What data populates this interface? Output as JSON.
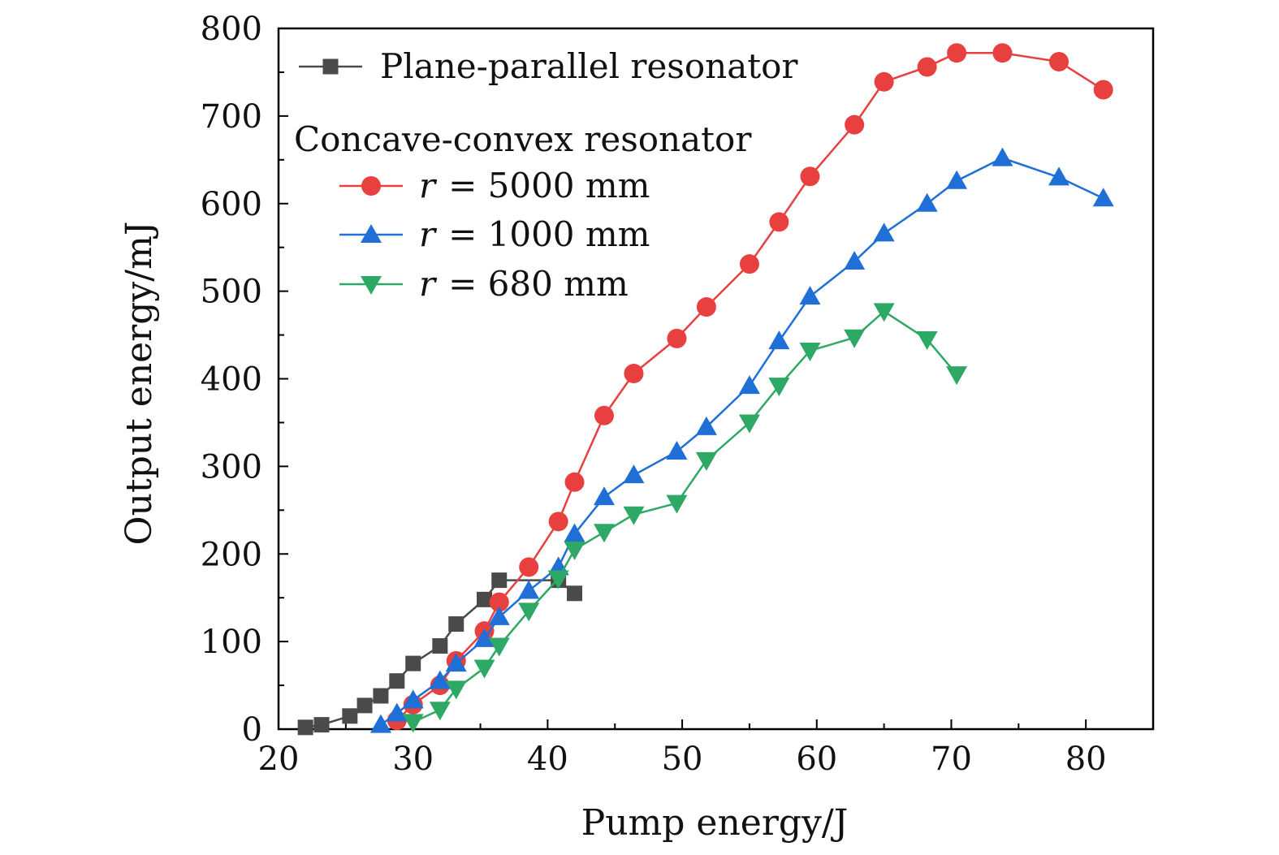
{
  "chart_data": {
    "type": "line",
    "title": "",
    "xlabel": "Pump energy/J",
    "ylabel": "Output energy/mJ",
    "xlim": [
      20,
      85
    ],
    "ylim": [
      0,
      800
    ],
    "x_ticks": [
      20,
      30,
      40,
      50,
      60,
      70,
      80
    ],
    "y_ticks": [
      0,
      100,
      200,
      300,
      400,
      500,
      600,
      700,
      800
    ],
    "grid": false,
    "legend_position": "top-left",
    "legend_group_heading": "Concave-convex resonator",
    "series": [
      {
        "name": "Plane-parallel resonator",
        "legend_main": "Plane-parallel resonator",
        "color": "#4a4a4a",
        "marker": "square",
        "x": [
          22.0,
          23.2,
          25.3,
          26.4,
          27.6,
          28.8,
          30.0,
          32.0,
          33.2,
          35.3,
          36.4,
          40.8,
          42.0
        ],
        "y": [
          2,
          5,
          15,
          27,
          38,
          55,
          75,
          95,
          120,
          148,
          170,
          170,
          155
        ]
      },
      {
        "name": "r = 5000 mm",
        "legend_var": "r",
        "legend_rest": "= 5000 mm",
        "color": "#e8403f",
        "marker": "circle",
        "x": [
          28.8,
          30.0,
          32.0,
          33.2,
          35.3,
          36.4,
          38.6,
          40.8,
          42.0,
          44.2,
          46.4,
          49.6,
          51.8,
          55.0,
          57.2,
          59.5,
          62.8,
          65.0,
          68.2,
          70.4,
          73.8,
          78.0,
          81.3
        ],
        "y": [
          10,
          28,
          50,
          78,
          112,
          145,
          185,
          237,
          282,
          358,
          406,
          446,
          482,
          531,
          579,
          631,
          690,
          739,
          756,
          772,
          772,
          762,
          730
        ]
      },
      {
        "name": "r = 1000 mm",
        "legend_var": "r",
        "legend_rest": "= 1000 mm",
        "color": "#1f6fd6",
        "marker": "triangle-up",
        "x": [
          27.6,
          28.8,
          30.0,
          32.0,
          33.2,
          35.3,
          36.4,
          38.6,
          40.8,
          42.0,
          44.2,
          46.4,
          49.6,
          51.8,
          55.0,
          57.2,
          59.5,
          62.8,
          65.0,
          68.2,
          70.4,
          73.8,
          78.0,
          81.3
        ],
        "y": [
          5,
          18,
          33,
          55,
          75,
          103,
          128,
          158,
          185,
          223,
          265,
          290,
          317,
          345,
          392,
          443,
          494,
          534,
          566,
          600,
          626,
          652,
          630,
          606
        ]
      },
      {
        "name": "r = 680 mm",
        "legend_var": "r",
        "legend_rest": "= 680 mm",
        "color": "#2ea865",
        "marker": "triangle-down",
        "x": [
          30.0,
          32.0,
          33.2,
          35.3,
          36.4,
          38.6,
          40.8,
          42.0,
          44.2,
          46.4,
          49.6,
          51.8,
          55.0,
          57.2,
          59.5,
          62.8,
          65.0,
          68.2,
          70.4
        ],
        "y": [
          8,
          22,
          46,
          70,
          95,
          135,
          172,
          205,
          225,
          245,
          258,
          307,
          350,
          392,
          432,
          447,
          477,
          445,
          405
        ]
      }
    ]
  }
}
